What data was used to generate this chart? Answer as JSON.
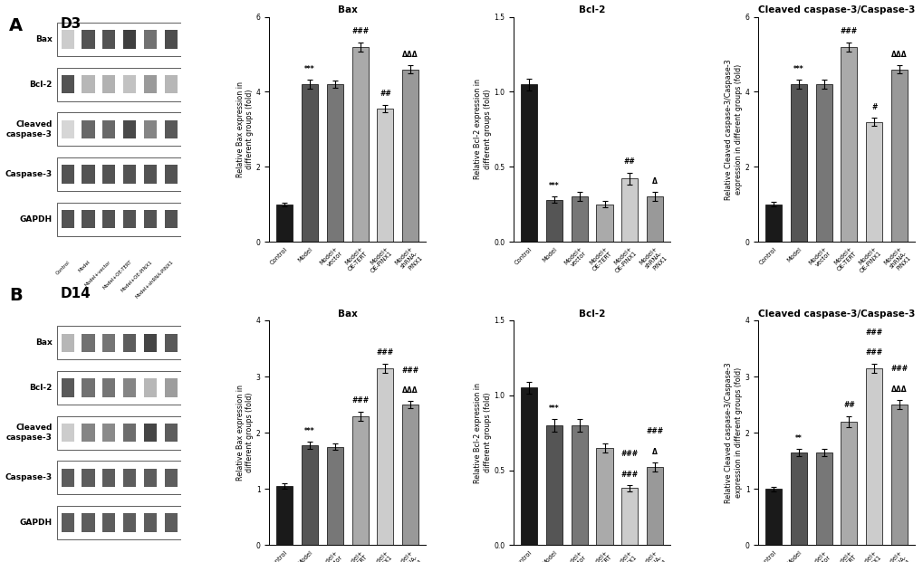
{
  "categories": [
    "Control",
    "Model",
    "Model+vector",
    "Model+OE-TERT",
    "Model+OE-PINX1",
    "Model+shRNA-PINX1"
  ],
  "panel_A": {
    "bax": {
      "values": [
        1.0,
        4.2,
        4.2,
        5.2,
        3.55,
        4.6
      ],
      "errors": [
        0.05,
        0.12,
        0.1,
        0.12,
        0.1,
        0.1
      ],
      "title": "Bax",
      "ylabel": "Relative Bax expression in\ndifferent groups (fold)",
      "ylim": [
        0,
        6
      ],
      "yticks": [
        0,
        2,
        4,
        6
      ],
      "significance": [
        "",
        "***",
        "",
        "###",
        "##",
        "ΔΔΔ"
      ]
    },
    "bcl2": {
      "values": [
        1.05,
        0.28,
        0.3,
        0.25,
        0.42,
        0.3
      ],
      "errors": [
        0.04,
        0.02,
        0.03,
        0.02,
        0.04,
        0.03
      ],
      "title": "Bcl-2",
      "ylabel": "Relative Bcl-2 expression in\ndifferent groups (fold)",
      "ylim": [
        0.0,
        1.5
      ],
      "yticks": [
        0.0,
        0.5,
        1.0,
        1.5
      ],
      "significance": [
        "",
        "***",
        "",
        "",
        "##",
        "Δ"
      ]
    },
    "casp3": {
      "values": [
        1.0,
        4.2,
        4.2,
        5.2,
        3.2,
        4.6
      ],
      "errors": [
        0.06,
        0.12,
        0.12,
        0.12,
        0.1,
        0.1
      ],
      "title": "Cleaved caspase-3/Caspase-3",
      "ylabel": "Relative Cleaved caspase-3/Caspase-3\nexpression in different groups (fold)",
      "ylim": [
        0,
        6
      ],
      "yticks": [
        0,
        2,
        4,
        6
      ],
      "significance": [
        "",
        "***",
        "",
        "###",
        "#",
        "ΔΔΔ"
      ]
    }
  },
  "panel_B": {
    "bax": {
      "values": [
        1.05,
        1.78,
        1.75,
        2.3,
        3.15,
        2.5
      ],
      "errors": [
        0.05,
        0.06,
        0.06,
        0.08,
        0.08,
        0.06
      ],
      "title": "Bax",
      "ylabel": "Relative Bax expression in\ndifferent groups (fold)",
      "ylim": [
        0,
        4
      ],
      "yticks": [
        0,
        1,
        2,
        3,
        4
      ],
      "significance": [
        "",
        "***",
        "",
        "###",
        "###",
        "ΔΔΔ\n###"
      ]
    },
    "bcl2": {
      "values": [
        1.05,
        0.8,
        0.8,
        0.65,
        0.38,
        0.52
      ],
      "errors": [
        0.04,
        0.04,
        0.04,
        0.03,
        0.02,
        0.03
      ],
      "title": "Bcl-2",
      "ylabel": "Relative Bcl-2 expression in\ndifferent groups (fold)",
      "ylim": [
        0.0,
        1.5
      ],
      "yticks": [
        0.0,
        0.5,
        1.0,
        1.5
      ],
      "significance": [
        "",
        "***",
        "",
        "",
        "###\n###",
        "Δ\n###"
      ]
    },
    "casp3": {
      "values": [
        1.0,
        1.65,
        1.65,
        2.2,
        3.15,
        2.5
      ],
      "errors": [
        0.04,
        0.06,
        0.06,
        0.1,
        0.08,
        0.08
      ],
      "title": "Cleaved caspase-3/Caspase-3",
      "ylabel": "Relative Cleaved caspase-3/Caspase-3\nexpression in different groups (fold)",
      "ylim": [
        0,
        4
      ],
      "yticks": [
        0,
        1,
        2,
        3,
        4
      ],
      "significance": [
        "",
        "**",
        "",
        "##",
        "###\n###",
        "ΔΔΔ\n###"
      ]
    }
  },
  "bar_colors": [
    "#1a1a1a",
    "#555555",
    "#777777",
    "#aaaaaa",
    "#cccccc",
    "#999999"
  ],
  "wb_label_A": [
    "Bax",
    "Bcl-2",
    "Cleaved\ncaspase-3",
    "Caspase-3",
    "GAPDH"
  ],
  "wb_label_B": [
    "Bax",
    "Bcl-2",
    "Cleaved\ncaspase-3",
    "Caspase-3",
    "GAPDH"
  ],
  "panel_label_A": "A",
  "panel_label_B": "B",
  "day_label_A": "D3",
  "day_label_B": "D14"
}
